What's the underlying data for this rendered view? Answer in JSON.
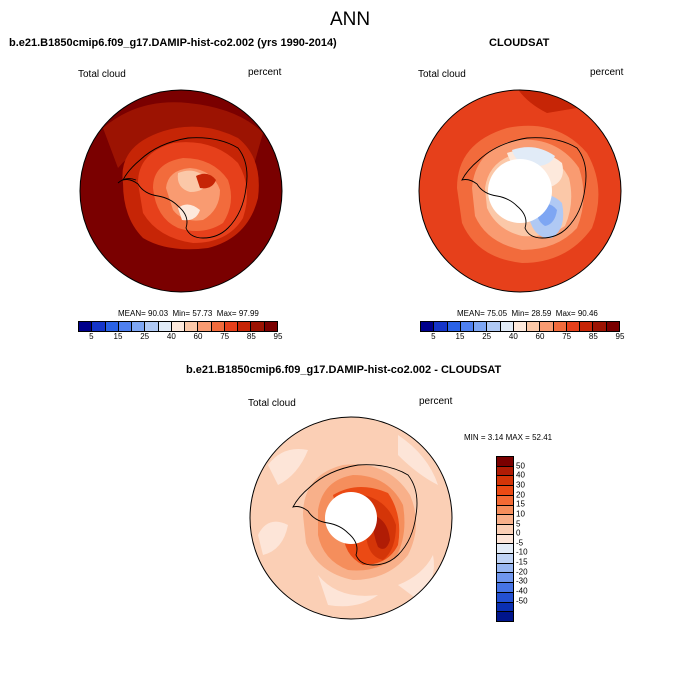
{
  "page": {
    "title": "ANN"
  },
  "panels": [
    {
      "id": "model",
      "title": "b.e21.B1850cmip6.f09_g17.DAMIP-hist-co2.002 (yrs 1990-2014)",
      "variable": "Total cloud",
      "units": "percent",
      "stats": {
        "mean_label": "MEAN=",
        "mean": "90.03",
        "min_label": "Min=",
        "min": "57.73",
        "max_label": "Max=",
        "max": "97.99"
      }
    },
    {
      "id": "obs",
      "title": "CLOUDSAT",
      "variable": "Total cloud",
      "units": "percent",
      "stats": {
        "mean_label": "MEAN=",
        "mean": "75.05",
        "min_label": "Min=",
        "min": "28.59",
        "max_label": "Max=",
        "max": "90.46"
      }
    },
    {
      "id": "diff",
      "title": "b.e21.B1850cmip6.f09_g17.DAMIP-hist-co2.002 - CLOUDSAT",
      "variable": "Total cloud",
      "units": "percent",
      "stats": {
        "min_label": "MIN =",
        "min": "3.14",
        "max_label": "MAX =",
        "max": "52.41"
      }
    }
  ],
  "colorbars": {
    "absolute": {
      "colors": [
        "#00008b",
        "#1535c9",
        "#2a62e6",
        "#4f80f0",
        "#7ea6f3",
        "#b0c9f4",
        "#e1ebf7",
        "#fde9dc",
        "#fbc8a8",
        "#f99b71",
        "#f26b3c",
        "#e6401b",
        "#c62506",
        "#9c1302",
        "#7a0000"
      ],
      "tick_labels": [
        "5",
        "15",
        "25",
        "40",
        "60",
        "75",
        "85",
        "95"
      ]
    },
    "difference": {
      "colors": [
        "#7a0000",
        "#b01c05",
        "#d43508",
        "#eb4a14",
        "#f36a34",
        "#f58e5c",
        "#f8b08a",
        "#fbcfb5",
        "#fde5d8",
        "#e3ecf7",
        "#bfd3f5",
        "#98b7f2",
        "#6f96ee",
        "#4674e6",
        "#2350d2",
        "#0a2fb2",
        "#00158c"
      ],
      "tick_labels": [
        "50",
        "40",
        "30",
        "20",
        "15",
        "10",
        "5",
        "0",
        "-5",
        "-10",
        "-15",
        "-20",
        "-30",
        "-40",
        "-50"
      ]
    }
  }
}
